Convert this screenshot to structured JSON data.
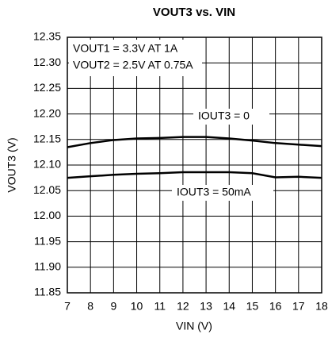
{
  "chart_data": {
    "type": "line",
    "title": "VOUT3 vs. VIN",
    "xlabel": "VIN (V)",
    "ylabel": "VOUT3 (V)",
    "annotations": [
      "VOUT1 = 3.3V AT 1A",
      "VOUT2 = 2.5V AT 0.75A"
    ],
    "x": [
      7,
      8,
      9,
      10,
      11,
      12,
      13,
      14,
      15,
      16,
      17,
      18
    ],
    "series": [
      {
        "name": "IOUT3 = 0",
        "color": "#000000",
        "values": [
          12.135,
          12.143,
          12.149,
          12.152,
          12.153,
          12.155,
          12.155,
          12.152,
          12.148,
          12.143,
          12.14,
          12.137
        ]
      },
      {
        "name": "IOUT3 = 50mA",
        "color": "#000000",
        "values": [
          12.075,
          12.078,
          12.081,
          12.083,
          12.084,
          12.086,
          12.086,
          12.086,
          12.084,
          12.076,
          12.077,
          12.075
        ]
      }
    ],
    "xlim": [
      7,
      18
    ],
    "xticks": [
      7,
      8,
      9,
      10,
      11,
      12,
      13,
      14,
      15,
      16,
      17,
      18
    ],
    "ylim": [
      11.85,
      12.35
    ],
    "yticks": [
      11.85,
      {
        "value": 11.9,
        "label": "11.90"
      },
      11.95,
      {
        "value": 12,
        "label": "12.00"
      },
      12.05,
      {
        "value": 12.1,
        "label": "12.10"
      },
      12.15,
      {
        "value": 12.2,
        "label": "12.20"
      },
      12.25,
      {
        "value": 12.3,
        "label": "12.30"
      },
      12.35
    ],
    "grid": true
  }
}
